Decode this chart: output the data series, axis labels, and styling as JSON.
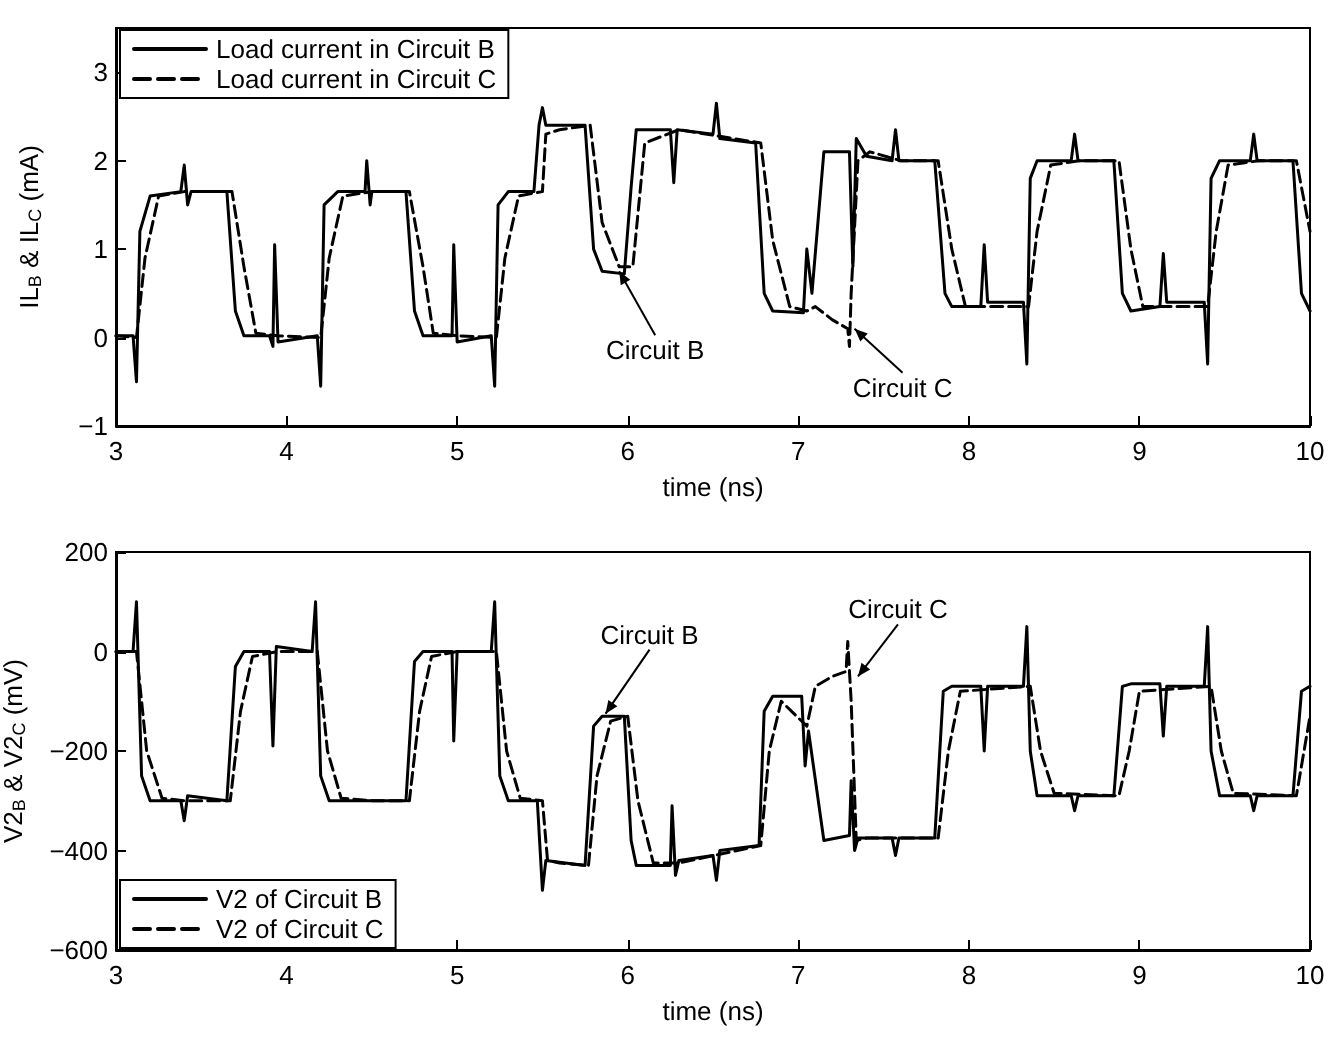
{
  "chart_data": [
    {
      "type": "line",
      "xlabel": "time (ns)",
      "ylabel": "IL$_{B}$ & IL$_{C}$ (mA)",
      "xlim": [
        3,
        10
      ],
      "xticks": [
        3,
        4,
        5,
        6,
        7,
        8,
        9,
        10
      ],
      "ylim": [
        -1,
        3.5
      ],
      "yticks": [
        -1,
        0,
        1,
        2,
        3
      ],
      "grid": false,
      "legend": "top left",
      "marker": "none",
      "series": [
        {
          "name": "Load current in Circuit B",
          "color": "#000000",
          "line_style": "solid",
          "x": [
            3,
            3.1,
            3.12,
            3.14,
            3.2,
            3.38,
            3.4,
            3.42,
            3.44,
            3.65,
            3.7,
            3.75,
            3.9,
            3.92,
            3.93,
            3.95,
            4.18,
            4.2,
            4.22,
            4.3,
            4.46,
            4.47,
            4.49,
            4.5,
            4.7,
            4.75,
            4.8,
            4.97,
            4.98,
            5.0,
            5.2,
            5.22,
            5.24,
            5.3,
            5.45,
            5.48,
            5.5,
            5.52,
            5.75,
            5.8,
            5.85,
            5.98,
            6.02,
            6.05,
            6.25,
            6.27,
            6.29,
            6.5,
            6.52,
            6.54,
            6.75,
            6.8,
            6.85,
            7.03,
            7.05,
            7.08,
            7.15,
            7.3,
            7.32,
            7.34,
            7.4,
            7.55,
            7.57,
            7.59,
            7.8,
            7.86,
            7.9,
            8.07,
            8.09,
            8.11,
            8.32,
            8.34,
            8.36,
            8.4,
            8.6,
            8.62,
            8.64,
            8.85,
            8.9,
            8.95,
            9.12,
            9.14,
            9.16,
            9.38,
            9.4,
            9.42,
            9.47,
            9.65,
            9.67,
            9.69,
            9.9,
            9.95,
            10
          ],
          "values": [
            0.02,
            0.02,
            -0.5,
            1.2,
            1.6,
            1.65,
            1.95,
            1.5,
            1.65,
            1.65,
            0.3,
            0.02,
            0.02,
            -0.1,
            1.05,
            -0.05,
            0.02,
            -0.55,
            1.5,
            1.65,
            1.65,
            2.0,
            1.5,
            1.65,
            1.65,
            0.3,
            0.02,
            0.02,
            1.05,
            -0.05,
            0.02,
            -0.55,
            1.5,
            1.65,
            1.65,
            2.4,
            2.6,
            2.4,
            2.4,
            1.0,
            0.75,
            0.72,
            1.7,
            2.35,
            2.35,
            1.75,
            2.35,
            2.3,
            2.65,
            2.25,
            2.2,
            0.5,
            0.3,
            0.28,
            1.0,
            0.5,
            2.1,
            2.1,
            0.8,
            2.25,
            2.05,
            2.0,
            2.35,
            2.0,
            2.0,
            0.5,
            0.35,
            0.35,
            1.05,
            0.4,
            0.4,
            -0.3,
            1.8,
            2.0,
            2.0,
            2.3,
            2.0,
            2.0,
            0.5,
            0.3,
            0.35,
            0.95,
            0.4,
            0.4,
            -0.3,
            1.8,
            2.0,
            2.0,
            2.3,
            2.0,
            2.0,
            0.5,
            0.3
          ]
        },
        {
          "name": "Load current in Circuit C",
          "color": "#000000",
          "line_style": "dashed",
          "x": [
            3,
            3.12,
            3.17,
            3.25,
            3.4,
            3.68,
            3.75,
            3.82,
            3.95,
            4.2,
            4.25,
            4.33,
            4.5,
            4.72,
            4.8,
            4.86,
            5.0,
            5.23,
            5.28,
            5.36,
            5.5,
            5.52,
            5.6,
            5.78,
            5.85,
            5.95,
            6.03,
            6.1,
            6.3,
            6.78,
            6.85,
            6.95,
            7.05,
            7.1,
            7.2,
            7.29,
            7.3,
            7.31,
            7.35,
            7.42,
            7.6,
            7.82,
            7.9,
            7.98,
            8.35,
            8.4,
            8.48,
            8.65,
            8.88,
            8.95,
            9.02,
            9.4,
            9.45,
            9.52,
            9.7,
            9.92,
            10
          ],
          "values": [
            0.02,
            0.0,
            0.9,
            1.6,
            1.65,
            1.65,
            0.8,
            0.05,
            0.02,
            0.0,
            0.9,
            1.6,
            1.65,
            1.65,
            0.8,
            0.05,
            0.02,
            0.0,
            0.9,
            1.6,
            1.65,
            2.3,
            2.35,
            2.4,
            1.3,
            0.8,
            0.8,
            2.2,
            2.35,
            2.2,
            1.1,
            0.35,
            0.3,
            0.35,
            0.2,
            0.1,
            -0.1,
            0.5,
            2.0,
            2.1,
            2.0,
            2.0,
            1.0,
            0.35,
            0.35,
            1.2,
            1.95,
            2.0,
            2.0,
            1.0,
            0.35,
            0.35,
            1.2,
            1.95,
            2.0,
            2.0,
            1.2
          ]
        }
      ],
      "annotations": [
        {
          "text": "Circuit B",
          "x": 5.95,
          "y": 0.75
        },
        {
          "text": "Circuit C",
          "x": 7.33,
          "y": 0.1
        }
      ]
    },
    {
      "type": "line",
      "xlabel": "time (ns)",
      "ylabel": "V2$_{B}$ & V2$_{C}$ (mV)",
      "xlim": [
        3,
        10
      ],
      "xticks": [
        3,
        4,
        5,
        6,
        7,
        8,
        9,
        10
      ],
      "ylim": [
        -600,
        200
      ],
      "yticks": [
        -600,
        -400,
        -200,
        0,
        200
      ],
      "grid": false,
      "legend": "bottom left",
      "marker": "none",
      "series": [
        {
          "name": "V2 of Circuit B",
          "color": "#000000",
          "line_style": "solid",
          "x": [
            3,
            3.1,
            3.12,
            3.15,
            3.2,
            3.38,
            3.4,
            3.42,
            3.65,
            3.7,
            3.75,
            3.9,
            3.92,
            3.94,
            4.15,
            4.17,
            4.2,
            4.25,
            4.7,
            4.75,
            4.8,
            4.97,
            4.98,
            5.0,
            5.2,
            5.22,
            5.25,
            5.3,
            5.47,
            5.5,
            5.52,
            5.75,
            5.8,
            5.85,
            5.98,
            6.02,
            6.05,
            6.25,
            6.26,
            6.28,
            6.3,
            6.5,
            6.52,
            6.54,
            6.77,
            6.8,
            6.85,
            7.02,
            7.04,
            7.06,
            7.15,
            7.3,
            7.31,
            7.33,
            7.35,
            7.55,
            7.57,
            7.59,
            7.8,
            7.85,
            7.9,
            8.07,
            8.09,
            8.11,
            8.32,
            8.34,
            8.36,
            8.4,
            8.6,
            8.62,
            8.64,
            8.85,
            8.9,
            8.95,
            9.12,
            9.14,
            9.16,
            9.38,
            9.4,
            9.42,
            9.47,
            9.65,
            9.67,
            9.69,
            9.9,
            9.95,
            10
          ],
          "values": [
            0,
            0,
            100,
            -250,
            -300,
            -300,
            -340,
            -290,
            -300,
            -30,
            0,
            0,
            -190,
            10,
            0,
            100,
            -250,
            -300,
            -300,
            -20,
            0,
            0,
            -180,
            0,
            0,
            100,
            -250,
            -300,
            -300,
            -480,
            -420,
            -430,
            -150,
            -130,
            -130,
            -380,
            -430,
            -430,
            -310,
            -450,
            -420,
            -410,
            -460,
            -400,
            -390,
            -120,
            -90,
            -90,
            -230,
            -160,
            -380,
            -370,
            -260,
            -400,
            -375,
            -375,
            -410,
            -375,
            -375,
            -80,
            -70,
            -70,
            -200,
            -70,
            -70,
            50,
            -200,
            -290,
            -290,
            -320,
            -290,
            -290,
            -70,
            -65,
            -65,
            -170,
            -70,
            -70,
            50,
            -200,
            -290,
            -290,
            -320,
            -290,
            -290,
            -80,
            -70
          ]
        },
        {
          "name": "V2 of Circuit C",
          "color": "#000000",
          "line_style": "dashed",
          "x": [
            3,
            3.12,
            3.18,
            3.27,
            3.4,
            3.67,
            3.73,
            3.8,
            3.95,
            4.18,
            4.24,
            4.32,
            4.5,
            4.72,
            4.78,
            4.85,
            5.0,
            5.23,
            5.29,
            5.37,
            5.5,
            5.53,
            5.6,
            5.77,
            5.82,
            5.9,
            6.0,
            6.06,
            6.15,
            6.3,
            6.78,
            6.83,
            6.9,
            7.05,
            7.1,
            7.2,
            7.28,
            7.29,
            7.31,
            7.34,
            7.4,
            7.82,
            7.88,
            7.95,
            8.36,
            8.42,
            8.5,
            8.88,
            8.94,
            9.0,
            9.42,
            9.48,
            9.55,
            9.92,
            10
          ],
          "values": [
            0,
            0,
            -200,
            -295,
            -300,
            -300,
            -120,
            -10,
            0,
            0,
            -200,
            -295,
            -300,
            -300,
            -120,
            -10,
            0,
            0,
            -200,
            -295,
            -300,
            -420,
            -425,
            -430,
            -250,
            -140,
            -130,
            -300,
            -425,
            -425,
            -390,
            -200,
            -100,
            -150,
            -70,
            -50,
            -40,
            20,
            -100,
            -380,
            -375,
            -375,
            -200,
            -80,
            -70,
            -200,
            -285,
            -290,
            -200,
            -80,
            -70,
            -200,
            -285,
            -290,
            -130
          ]
        }
      ],
      "annotations": [
        {
          "text": "Circuit B",
          "x": 5.87,
          "y": -125
        },
        {
          "text": "Circuit C",
          "x": 7.35,
          "y": -50
        }
      ]
    }
  ]
}
